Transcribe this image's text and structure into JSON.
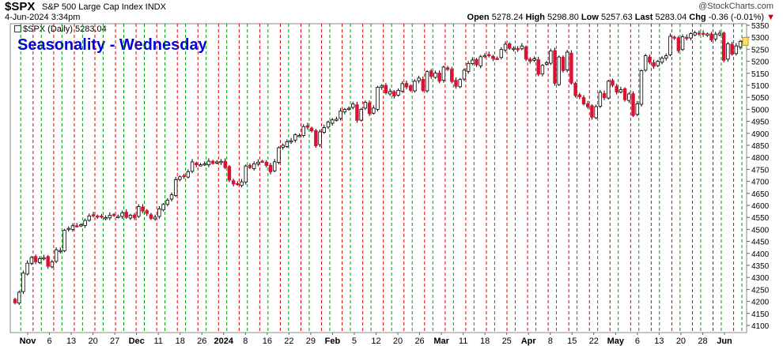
{
  "header": {
    "symbol": "$SPX",
    "name": "S&P 500 Large Cap Index INDX",
    "date": "4-Jun-2024 3:34pm",
    "brand": "@StockCharts.com",
    "open_label": "Open",
    "open": "5278.24",
    "high_label": "High",
    "high": "5298.80",
    "low_label": "Low",
    "low": "5257.63",
    "last_label": "Last",
    "last": "5283.04",
    "chg_label": "Chg",
    "chg": "-0.36 (-0.01%)",
    "legend": "$SPX (Daily) 5283.04",
    "title": "Seasonality - Wednesday"
  },
  "colors": {
    "up": "#ffffff",
    "down": "#dd1133",
    "green_line": "#009900",
    "red_line": "#dd0000",
    "title": "#0000dd"
  },
  "chart_data": {
    "type": "candlestick",
    "title": "Seasonality - Wednesday",
    "ylim": [
      4090,
      5350
    ],
    "yticks": [
      4100,
      4150,
      4200,
      4250,
      4300,
      4350,
      4400,
      4450,
      4500,
      4550,
      4600,
      4650,
      4700,
      4750,
      4800,
      4850,
      4900,
      4950,
      5000,
      5050,
      5100,
      5150,
      5200,
      5250,
      5300,
      5350
    ],
    "xticks": [
      "Nov",
      "6",
      "13",
      "20",
      "27",
      "Dec",
      "11",
      "18",
      "26",
      "2024",
      "8",
      "16",
      "22",
      "29",
      "Feb",
      "5",
      "12",
      "20",
      "26",
      "Mar",
      "11",
      "18",
      "25",
      "Apr",
      "8",
      "15",
      "22",
      "May",
      "6",
      "13",
      "20",
      "28",
      "Jun"
    ],
    "xtick_bold": [
      "Nov",
      "Dec",
      "2024",
      "Feb",
      "Mar",
      "Apr",
      "May",
      "Jun"
    ],
    "close": [
      4194,
      4238,
      4318,
      4359,
      4383,
      4365,
      4378,
      4382,
      4346,
      4365,
      4415,
      4412,
      4496,
      4504,
      4515,
      4514,
      4519,
      4537,
      4556,
      4558,
      4554,
      4551,
      4549,
      4559,
      4558,
      4554,
      4568,
      4550,
      4559,
      4549,
      4595,
      4576,
      4566,
      4545,
      4551,
      4585,
      4604,
      4622,
      4644,
      4707,
      4719,
      4720,
      4740,
      4781,
      4769,
      4769,
      4773,
      4784,
      4775,
      4781,
      4783,
      4757,
      4705,
      4689,
      4688,
      4698,
      4764,
      4757,
      4773,
      4780,
      4783,
      4766,
      4739,
      4781,
      4840,
      4850,
      4865,
      4869,
      4894,
      4891,
      4928,
      4925,
      4910,
      4848,
      4906,
      4924,
      4947,
      4956,
      4959,
      4993,
      5000,
      5004,
      5022,
      4954,
      5000,
      5029,
      4982,
      5005,
      5092,
      5097,
      5068,
      5074,
      5055,
      5079,
      5107,
      5093,
      5079,
      5117,
      5130,
      5078,
      5157,
      5137,
      5151,
      5117,
      5176,
      5166,
      5116,
      5096,
      5124,
      5163,
      5191,
      5205,
      5185,
      5219,
      5224,
      5224,
      5211,
      5211,
      5249,
      5271,
      5254,
      5254,
      5249,
      5264,
      5209,
      5200,
      5210,
      5146,
      5183,
      5194,
      5243,
      5108,
      5218,
      5161,
      5238,
      5109,
      5057,
      5052,
      5022,
      5010,
      4967,
      5011,
      5071,
      5048,
      5117,
      5100,
      5072,
      5082,
      5040,
      5064,
      4974,
      5023,
      5161,
      5223,
      5196,
      5179,
      5200,
      5213,
      5223,
      5304,
      5297,
      5244,
      5302,
      5295,
      5315,
      5319,
      5314,
      5312,
      5314,
      5289,
      5313,
      5317,
      5204,
      5273,
      5230,
      5264,
      5283
    ]
  }
}
